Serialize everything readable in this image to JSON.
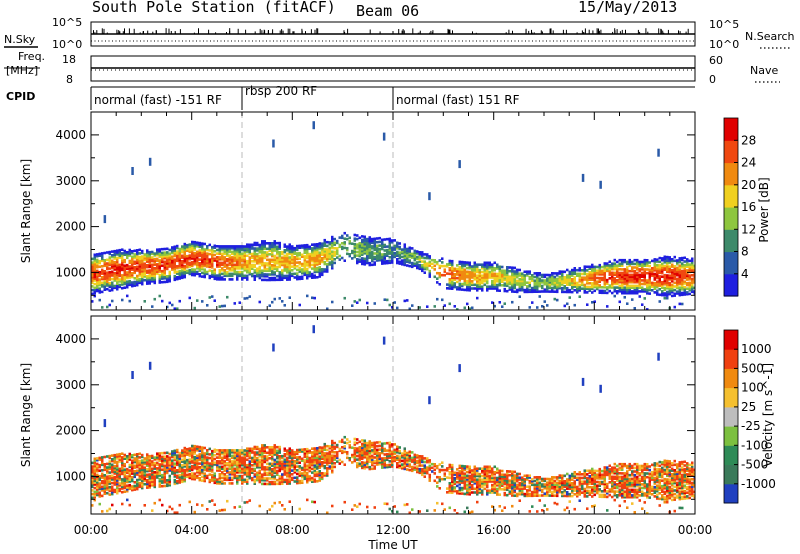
{
  "header": {
    "station": "South Pole Station (fitACF)",
    "beam": "Beam 06",
    "date": "15/May/2013"
  },
  "side_labels": {
    "nsky": "N.Sky",
    "freq_line1": "Freq.",
    "freq_line2": "[MHz]",
    "cpid": "CPID",
    "nsearch": "N.Search",
    "nave": "Nave"
  },
  "mini_ticks": {
    "noise_top": "10^5",
    "noise_bottom": "10^0",
    "freq_top": "18",
    "freq_bottom": "8",
    "nave_top": "60",
    "nave_bottom": "0"
  },
  "cpid_segments": [
    {
      "label": "normal (fast) -151 RF",
      "start_hour": 0
    },
    {
      "label": "rbsp 200 RF",
      "start_hour": 6
    },
    {
      "label": "normal (fast) 151 RF",
      "start_hour": 12
    }
  ],
  "chart_data": [
    {
      "type": "heatmap",
      "name": "power",
      "ylabel": "Slant Range [km]",
      "xlabel": "",
      "xlim": [
        0,
        24
      ],
      "ylim": [
        180,
        4500
      ],
      "yticks": [
        1000,
        2000,
        3000,
        4000
      ],
      "colorbar_label": "Power [dB]",
      "colorbar_ticks": [
        "4",
        "8",
        "12",
        "16",
        "20",
        "24",
        "28"
      ],
      "colorbar_colors": [
        "#1f1fe0",
        "#2a5aa8",
        "#3d8a6a",
        "#8ec63f",
        "#f0d020",
        "#f08a10",
        "#f04810",
        "#e00000"
      ],
      "band_hourly": {
        "hours": [
          0,
          1,
          2,
          3,
          4,
          5,
          6,
          7,
          8,
          9,
          10,
          11,
          12,
          13,
          14,
          15,
          16,
          17,
          18,
          19,
          20,
          21,
          22,
          23,
          24
        ],
        "center_km": [
          1000,
          1100,
          1150,
          1200,
          1350,
          1250,
          1250,
          1300,
          1250,
          1300,
          1600,
          1500,
          1500,
          1300,
          1000,
          950,
          950,
          850,
          800,
          850,
          900,
          950,
          950,
          950,
          950
        ],
        "halfwidth_km": [
          350,
          350,
          300,
          300,
          300,
          300,
          300,
          350,
          300,
          300,
          250,
          250,
          200,
          150,
          250,
          250,
          250,
          200,
          150,
          200,
          250,
          300,
          300,
          350,
          300
        ],
        "core_dB": [
          26,
          28,
          27,
          27,
          28,
          26,
          22,
          20,
          20,
          22,
          14,
          12,
          10,
          14,
          26,
          22,
          20,
          16,
          14,
          18,
          26,
          28,
          28,
          28,
          26
        ]
      }
    },
    {
      "type": "heatmap",
      "name": "velocity",
      "ylabel": "Slant Range [km]",
      "xlabel": "Time UT",
      "xlim": [
        0,
        24
      ],
      "ylim": [
        180,
        4500
      ],
      "yticks": [
        1000,
        2000,
        3000,
        4000
      ],
      "xticks": [
        "00:00",
        "04:00",
        "08:00",
        "12:00",
        "16:00",
        "20:00",
        "00:00"
      ],
      "colorbar_label": "Velocity [m s^-1]",
      "colorbar_ticks": [
        "1000",
        "500",
        "100",
        "25",
        "-25",
        "-100",
        "-500",
        "-1000"
      ],
      "colorbar_colors": [
        "#2040c0",
        "#3a7a5a",
        "#2e8b57",
        "#7cc040",
        "#bdbdbd",
        "#f5c030",
        "#f08a10",
        "#f04010",
        "#e00000"
      ]
    }
  ]
}
